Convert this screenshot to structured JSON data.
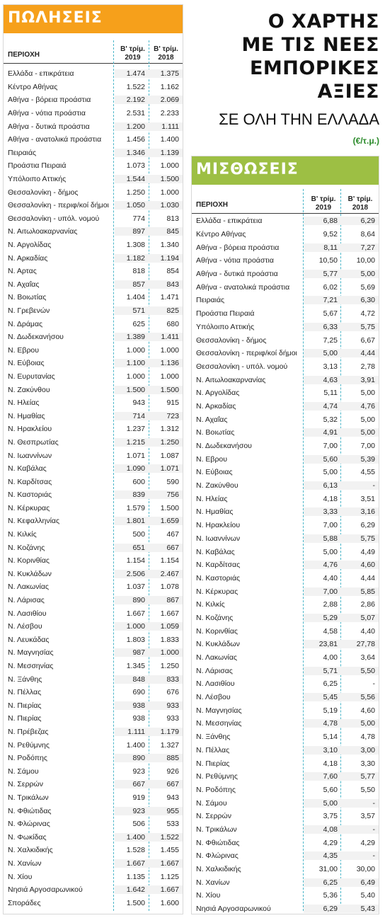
{
  "headline": {
    "lines": [
      "Ο ΧΑΡΤΗΣ",
      "ΜΕ ΤΙΣ ΝΕΕΣ",
      "ΕΜΠΟΡΙΚΕΣ",
      "ΑΞΙΕΣ"
    ],
    "subtitle": "ΣΕ ΟΛΗ ΤΗΝ ΕΛΛΑΔΑ",
    "unit": "(€/τ.μ.)"
  },
  "colors": {
    "sales_banner": "#f6a01b",
    "rent_banner": "#9dbf44",
    "divider": "#4bb6c9"
  },
  "sales": {
    "title": "ΠΩΛΗΣΕΙΣ",
    "col_region": "ΠΕΡΙΟΧΗ",
    "col_a": [
      "Β' τρίμ.",
      "2019"
    ],
    "col_b": [
      "Β' τρίμ.",
      "2018"
    ],
    "rows": [
      [
        "Ελλάδα - επικράτεια",
        "1.474",
        "1.375"
      ],
      [
        "Κέντρο Αθήνας",
        "1.522",
        "1.162"
      ],
      [
        "Αθήνα - βόρεια προάστια",
        "2.192",
        "2.069"
      ],
      [
        "Αθήνα - νότια προάστια",
        "2.531",
        "2.233"
      ],
      [
        "Αθήνα - δυτικά προάστια",
        "1.200",
        "1.111"
      ],
      [
        "Αθήνα - ανατολικά προάστια",
        "1.456",
        "1.400"
      ],
      [
        "Πειραιάς",
        "1.346",
        "1.139"
      ],
      [
        "Προάστια Πειραιά",
        "1.073",
        "1.000"
      ],
      [
        "Υπόλοιπο Αττικής",
        "1.544",
        "1.500"
      ],
      [
        "Θεσσαλονίκη - δήμος",
        "1.250",
        "1.000"
      ],
      [
        "Θεσσαλονίκη - περιφ/κοί δήμοι",
        "1.050",
        "1.030"
      ],
      [
        "Θεσσαλονίκη - υπόλ. νομού",
        "774",
        "813"
      ],
      [
        "Ν. Αιτωλοακαρνανίας",
        "897",
        "845"
      ],
      [
        "Ν. Αργολίδας",
        "1.308",
        "1.340"
      ],
      [
        "Ν. Αρκαδίας",
        "1.182",
        "1.194"
      ],
      [
        "Ν. Αρτας",
        "818",
        "854"
      ],
      [
        "Ν. Αχαΐας",
        "857",
        "843"
      ],
      [
        "Ν. Βοιωτίας",
        "1.404",
        "1.471"
      ],
      [
        "Ν. Γρεβενών",
        "571",
        "825"
      ],
      [
        "Ν. Δράμας",
        "625",
        "680"
      ],
      [
        "Ν. Δωδεκανήσου",
        "1.389",
        "1.411"
      ],
      [
        "Ν. Εβρου",
        "1.000",
        "1.000"
      ],
      [
        "Ν. Εύβοιας",
        "1.100",
        "1.136"
      ],
      [
        "Ν. Ευρυτανίας",
        "1.000",
        "1.000"
      ],
      [
        "Ν. Ζακύνθου",
        "1.500",
        "1.500"
      ],
      [
        "Ν. Ηλείας",
        "943",
        "915"
      ],
      [
        "Ν. Ημαθίας",
        "714",
        "723"
      ],
      [
        "Ν. Ηρακλείου",
        "1.237",
        "1.312"
      ],
      [
        "Ν. Θεσπρωτίας",
        "1.215",
        "1.250"
      ],
      [
        "Ν. Ιωαννίνων",
        "1.071",
        "1.087"
      ],
      [
        "Ν. Καβάλας",
        "1.090",
        "1.071"
      ],
      [
        "Ν. Καρδίτσας",
        "600",
        "590"
      ],
      [
        "Ν. Καστοριάς",
        "839",
        "756"
      ],
      [
        "Ν. Κέρκυρας",
        "1.579",
        "1.500"
      ],
      [
        "Ν. Κεφαλληνίας",
        "1.801",
        "1.659"
      ],
      [
        "Ν. Κιλκίς",
        "500",
        "467"
      ],
      [
        "Ν. Κοζάνης",
        "651",
        "667"
      ],
      [
        "Ν. Κορινθίας",
        "1.154",
        "1.154"
      ],
      [
        "Ν. Κυκλάδων",
        "2.506",
        "2.467"
      ],
      [
        "Ν. Λακωνίας",
        "1.037",
        "1.078"
      ],
      [
        "Ν. Λάρισας",
        "890",
        "867"
      ],
      [
        "Ν. Λασιθίου",
        "1.667",
        "1.667"
      ],
      [
        "Ν. Λέσβου",
        "1.000",
        "1.059"
      ],
      [
        "Ν. Λευκάδας",
        "1.803",
        "1.833"
      ],
      [
        "Ν. Μαγνησίας",
        "987",
        "1.000"
      ],
      [
        "Ν. Μεσσηνίας",
        "1.345",
        "1.250"
      ],
      [
        "Ν. Ξάνθης",
        "848",
        "833"
      ],
      [
        "Ν. Πέλλας",
        "690",
        "676"
      ],
      [
        "Ν. Πιερίας",
        "938",
        "933"
      ],
      [
        "Ν. Πιερίας",
        "938",
        "933"
      ],
      [
        "Ν. Πρέβεζας",
        "1.111",
        "1.179"
      ],
      [
        "Ν. Ρεθύμνης",
        "1.400",
        "1.327"
      ],
      [
        "Ν. Ροδόπης",
        "890",
        "885"
      ],
      [
        "Ν. Σάμου",
        "923",
        "926"
      ],
      [
        "Ν. Σερρών",
        "667",
        "667"
      ],
      [
        "Ν. Τρικάλων",
        "919",
        "943"
      ],
      [
        "Ν. Φθιώτιδας",
        "923",
        "955"
      ],
      [
        "Ν. Φλώρινας",
        "506",
        "533"
      ],
      [
        "Ν. Φωκίδας",
        "1.400",
        "1.522"
      ],
      [
        "Ν. Χαλκιδικής",
        "1.528",
        "1.455"
      ],
      [
        "Ν. Χανίων",
        "1.667",
        "1.667"
      ],
      [
        "Ν. Χίου",
        "1.135",
        "1.125"
      ],
      [
        "Νησιά Αργοσαρωνικού",
        "1.642",
        "1.667"
      ],
      [
        "Σποράδες",
        "1.500",
        "1.600"
      ]
    ]
  },
  "rent": {
    "title": "ΜΙΣΘΩΣΕΙΣ",
    "col_region": "ΠΕΡΙΟΧΗ",
    "col_a": [
      "Β' τρίμ.",
      "2019"
    ],
    "col_b": [
      "Β' τρίμ.",
      "2018"
    ],
    "rows": [
      [
        "Ελλάδα - επικράτεια",
        "6,88",
        "6,29"
      ],
      [
        "Κέντρο Αθήνας",
        "9,52",
        "8,64"
      ],
      [
        "Αθήνα - βόρεια προάστια",
        "8,11",
        "7,27"
      ],
      [
        "Αθήνα - νότια προάστια",
        "10,50",
        "10,00"
      ],
      [
        "Αθήνα - δυτικά προάστια",
        "5,77",
        "5,00"
      ],
      [
        "Αθήνα - ανατολικά προάστια",
        "6,02",
        "5,69"
      ],
      [
        "Πειραιάς",
        "7,21",
        "6,30"
      ],
      [
        "Προάστια Πειραιά",
        "5,67",
        "4,72"
      ],
      [
        "Υπόλοιπο Αττικής",
        "6,33",
        "5,75"
      ],
      [
        "Θεσσαλονίκη - δήμος",
        "7,25",
        "6,67"
      ],
      [
        "Θεσσαλονίκη - περιφ/κοί δήμοι",
        "5,00",
        "4,44"
      ],
      [
        "Θεσσαλονίκη - υπόλ. νομού",
        "3,13",
        "2,78"
      ],
      [
        "Ν. Αιτωλοακαρνανίας",
        "4,63",
        "3,91"
      ],
      [
        "Ν. Αργολίδας",
        "5,11",
        "5,00"
      ],
      [
        "Ν. Αρκαδίας",
        "4,74",
        "4,76"
      ],
      [
        "Ν. Αχαΐας",
        "5,32",
        "5,00"
      ],
      [
        "Ν. Βοιωτίας",
        "4,91",
        "5,00"
      ],
      [
        "Ν. Δωδεκανήσου",
        "7,00",
        "7,00"
      ],
      [
        "Ν. Εβρου",
        "5,60",
        "5,39"
      ],
      [
        "Ν. Εύβοιας",
        "5,00",
        "4,55"
      ],
      [
        "Ν. Ζακύνθου",
        "6,13",
        "-"
      ],
      [
        "Ν. Ηλείας",
        "4,18",
        "3,51"
      ],
      [
        "Ν. Ημαθίας",
        "3,33",
        "3,16"
      ],
      [
        "Ν. Ηρακλείου",
        "7,00",
        "6,29"
      ],
      [
        "Ν. Ιωαννίνων",
        "5,88",
        "5,75"
      ],
      [
        "Ν. Καβάλας",
        "5,00",
        "4,49"
      ],
      [
        "Ν. Καρδίτσας",
        "4,76",
        "4,60"
      ],
      [
        "Ν. Καστοριάς",
        "4,40",
        "4,44"
      ],
      [
        "Ν. Κέρκυρας",
        "7,00",
        "5,85"
      ],
      [
        "Ν. Κιλκίς",
        "2,88",
        "2,86"
      ],
      [
        "Ν. Κοζάνης",
        "5,29",
        "5,07"
      ],
      [
        "Ν. Κορινθίας",
        "4,58",
        "4,40"
      ],
      [
        "Ν. Κυκλάδων",
        "23,81",
        "27,78"
      ],
      [
        "Ν. Λακωνίας",
        "4,00",
        "3,64"
      ],
      [
        "Ν. Λάρισας",
        "5,71",
        "5,50"
      ],
      [
        "Ν. Λασιθίου",
        "6,25",
        "-"
      ],
      [
        "Ν. Λέσβου",
        "5,45",
        "5,56"
      ],
      [
        "Ν. Μαγνησίας",
        "5,19",
        "4,60"
      ],
      [
        "Ν. Μεσσηνίας",
        "4,78",
        "5,00"
      ],
      [
        "Ν. Ξάνθης",
        "5,14",
        "4,78"
      ],
      [
        "Ν. Πέλλας",
        "3,10",
        "3,00"
      ],
      [
        "Ν. Πιερίας",
        "4,18",
        "3,30"
      ],
      [
        "Ν. Ρεθύμνης",
        "7,60",
        "5,77"
      ],
      [
        "Ν. Ροδόπης",
        "5,60",
        "5,50"
      ],
      [
        "Ν. Σάμου",
        "5,00",
        "-"
      ],
      [
        "Ν. Σερρών",
        "3,75",
        "3,57"
      ],
      [
        "Ν. Τρικάλων",
        "4,08",
        "-"
      ],
      [
        "Ν. Φθιώτιδας",
        "4,29",
        "4,29"
      ],
      [
        "Ν. Φλώρινας",
        "4,35",
        "-"
      ],
      [
        "Ν. Χαλκιδικής",
        "31,00",
        "30,00"
      ],
      [
        "Ν. Χανίων",
        "6,25",
        "6,49"
      ],
      [
        "Ν. Χίου",
        "5,36",
        "5,40"
      ],
      [
        "Νησιά Αργοσαρωνικού",
        "6,29",
        "5,43"
      ]
    ]
  }
}
